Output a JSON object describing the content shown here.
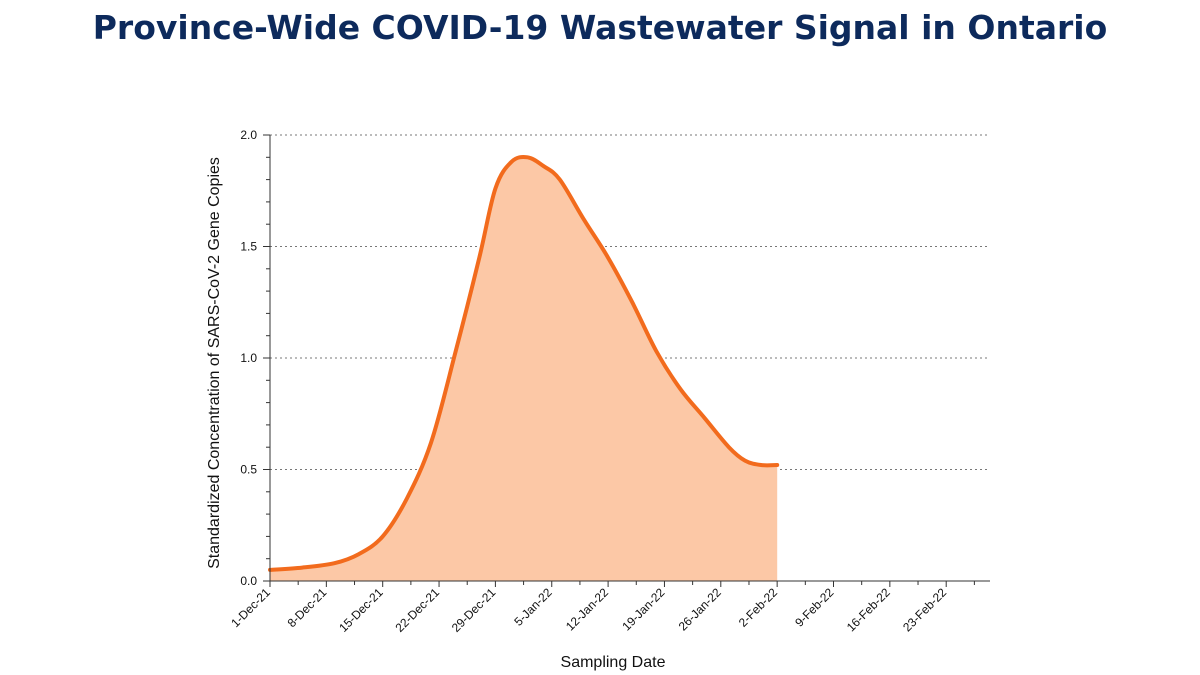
{
  "title": "Province-Wide COVID-19 Wastewater Signal in Ontario",
  "colors": {
    "title": "#0d2a5c",
    "line": "#f26b1d",
    "fill": "#fcc8a6",
    "grid": "#777777"
  },
  "chart_data": {
    "type": "area",
    "title": "Province-Wide COVID-19 Wastewater Signal in Ontario",
    "xlabel": "Sampling Date",
    "ylabel": "Standardized Concentration of SARS-CoV-2 Gene Copies",
    "x_ticks": [
      "1-Dec-21",
      "8-Dec-21",
      "15-Dec-21",
      "22-Dec-21",
      "29-Dec-21",
      "5-Jan-22",
      "12-Jan-22",
      "19-Jan-22",
      "26-Jan-22",
      "2-Feb-22",
      "9-Feb-22",
      "16-Feb-22",
      "23-Feb-22"
    ],
    "xlim": [
      "2021-12-01",
      "2022-02-28"
    ],
    "y_ticks": [
      "0.0",
      "0.5",
      "1.0",
      "1.5",
      "2.0"
    ],
    "ylim": [
      0,
      2
    ],
    "grid": "horizontal dotted",
    "series": [
      {
        "x": [
          "2021-12-01",
          "2021-12-05",
          "2021-12-09",
          "2021-12-12",
          "2021-12-15",
          "2021-12-18",
          "2021-12-21",
          "2021-12-24",
          "2021-12-27",
          "2021-12-29",
          "2021-12-31",
          "2022-01-02",
          "2022-01-04",
          "2022-01-06",
          "2022-01-09",
          "2022-01-12",
          "2022-01-15",
          "2022-01-18",
          "2022-01-21",
          "2022-01-24",
          "2022-01-27",
          "2022-01-29",
          "2022-01-31",
          "2022-02-02"
        ],
        "y": [
          0.05,
          0.06,
          0.08,
          0.12,
          0.2,
          0.37,
          0.62,
          1.02,
          1.45,
          1.76,
          1.88,
          1.9,
          1.86,
          1.8,
          1.62,
          1.45,
          1.25,
          1.03,
          0.86,
          0.73,
          0.6,
          0.54,
          0.52,
          0.52
        ]
      }
    ]
  }
}
